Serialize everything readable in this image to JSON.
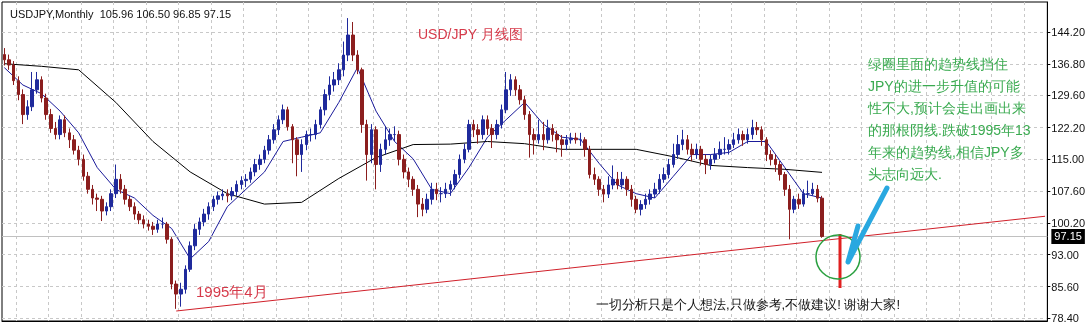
{
  "chart_data": {
    "type": "candlestick",
    "title": "USD/JPY 月线图",
    "subtitle": "USDJPY,Monthly  105.96 106.50 96.85 97.15",
    "annotations": [
      "1995年4月",
      "绿圈里面的趋势线挡住JPY的进一步升值的可能性不大,预计会走出画出来的那根阴线.跌破1995年13年来的趋势线,相信JPY多头志向远大.",
      "一切分析只是个人想法,只做参考,不做建议! 谢谢大家!"
    ],
    "categories": [
      null,
      null,
      null,
      null,
      null,
      null,
      null,
      null,
      null,
      null,
      null,
      null,
      null,
      null,
      null,
      null,
      null,
      null,
      null,
      null,
      null,
      null,
      null,
      null,
      null,
      null,
      null,
      null,
      null,
      null,
      null,
      null,
      null,
      null,
      null,
      null,
      null,
      null,
      null,
      null,
      null,
      null,
      null,
      null,
      null,
      null,
      null,
      null,
      null,
      null,
      null,
      null,
      null,
      null,
      null,
      null,
      null,
      null,
      null,
      null,
      null,
      null,
      null,
      null,
      null,
      null,
      null,
      null,
      null,
      null,
      null,
      null,
      null,
      null,
      null,
      null,
      null,
      null,
      null,
      null,
      null,
      null,
      null,
      null,
      null,
      null,
      null,
      null,
      null,
      null,
      null,
      null,
      null,
      null,
      null,
      null,
      null,
      null,
      null,
      null,
      null,
      null,
      null,
      null,
      null,
      null,
      null,
      null,
      null,
      null,
      null,
      null,
      null,
      null,
      null,
      null,
      null,
      null,
      null,
      null,
      null,
      null,
      null,
      null,
      null,
      null,
      null,
      null,
      null,
      null,
      null,
      null,
      null,
      null,
      null,
      null,
      null,
      null,
      null,
      null,
      null,
      null,
      null,
      null,
      null,
      null,
      null,
      null,
      null,
      null,
      null,
      null,
      null,
      null,
      null,
      null,
      null,
      null,
      null,
      null,
      null,
      null,
      null,
      null,
      null,
      null,
      null,
      null,
      null,
      null,
      null,
      null,
      null,
      null,
      null,
      null,
      null,
      null,
      null,
      null,
      null,
      null,
      null,
      null,
      null,
      null,
      null,
      null,
      null,
      null,
      null,
      null,
      null,
      null,
      null,
      null,
      null,
      null,
      null,
      null,
      null,
      null,
      null,
      null,
      null,
      null,
      null,
      null,
      null,
      null,
      null,
      null,
      null,
      null,
      null,
      null,
      null,
      null,
      null,
      null,
      null,
      null,
      null,
      null,
      null
    ],
    "ylim": [
      77.7,
      151.1
    ],
    "yticks": [
      {
        "value": 78.4,
        "label": "78.40"
      },
      {
        "value": 85.6,
        "label": "85.60"
      },
      {
        "value": 93,
        "label": "93.00"
      },
      {
        "value": 100.2,
        "label": "100.20"
      },
      {
        "value": 107.6,
        "label": "107.60"
      },
      {
        "value": 115,
        "label": "115.00"
      },
      {
        "value": 122.2,
        "label": "122.20"
      },
      {
        "value": 129.6,
        "label": "129.60"
      },
      {
        "value": 136.8,
        "label": "136.80"
      },
      {
        "value": 144.2,
        "label": "144.20"
      }
    ],
    "tick_labels": "y",
    "grid": true,
    "marker": "none",
    "ref_lines": [
      {
        "axis": "y",
        "value": 97.15,
        "label": "97.15",
        "color": "#c0c0c0"
      }
    ],
    "series": [
      {
        "type": "candlestick",
        "ohlc": [
          [
            139,
            140.5,
            136.5,
            137.8
          ],
          [
            137.8,
            139,
            135.5,
            136.6
          ],
          [
            136.6,
            137.5,
            132,
            133
          ],
          [
            133,
            134,
            128.5,
            129.8
          ],
          [
            129.8,
            131,
            123,
            125.2
          ],
          [
            125.2,
            128.5,
            124,
            127
          ],
          [
            127,
            135,
            126,
            130.9
          ],
          [
            130.9,
            135,
            130,
            133.2
          ],
          [
            133.2,
            134,
            128,
            129
          ],
          [
            129,
            130,
            124,
            125.2
          ],
          [
            125.2,
            126.5,
            121,
            122
          ],
          [
            122,
            123.5,
            119.5,
            120.6
          ],
          [
            120.6,
            125,
            119.5,
            124
          ],
          [
            124,
            125,
            120,
            121
          ],
          [
            121,
            122,
            117.5,
            119.4
          ],
          [
            119.4,
            120.5,
            116,
            117
          ],
          [
            117,
            118,
            113.5,
            114.9
          ],
          [
            114.9,
            116,
            110,
            111
          ],
          [
            111,
            112,
            107,
            108
          ],
          [
            108,
            109,
            104.5,
            106
          ],
          [
            106,
            107,
            103,
            105.7
          ],
          [
            105.7,
            106.5,
            100.7,
            103
          ],
          [
            103,
            105,
            102,
            104
          ],
          [
            104,
            108,
            103,
            107
          ],
          [
            107,
            113.7,
            106,
            110.3
          ],
          [
            110.3,
            111.5,
            107,
            108
          ],
          [
            108,
            109,
            104.5,
            105.7
          ],
          [
            105.7,
            106.5,
            103,
            104
          ],
          [
            104,
            105,
            101,
            102.3
          ],
          [
            102.3,
            103,
            100,
            101
          ],
          [
            101,
            102,
            99,
            100
          ],
          [
            100,
            101,
            98.5,
            99.5
          ],
          [
            99.5,
            100.5,
            97.5,
            98.8
          ],
          [
            98.8,
            101,
            98,
            100
          ],
          [
            100,
            101.5,
            99,
            100
          ],
          [
            100,
            100.5,
            95.5,
            96.5
          ],
          [
            96.5,
            97,
            85,
            86.2
          ],
          [
            86.2,
            87,
            80.5,
            83.9
          ],
          [
            83.9,
            86.5,
            81,
            85
          ],
          [
            85,
            90.5,
            84,
            89.6
          ],
          [
            89.6,
            96,
            89,
            95
          ],
          [
            95,
            100,
            94,
            98.8
          ],
          [
            98.8,
            101.5,
            97.5,
            100.5
          ],
          [
            100.5,
            103.5,
            99.5,
            102.3
          ],
          [
            102.3,
            105,
            101,
            104
          ],
          [
            104,
            106.5,
            103,
            105.7
          ],
          [
            105.7,
            107.5,
            104.5,
            106.5
          ],
          [
            106.5,
            108,
            105.5,
            106.9
          ],
          [
            106.9,
            108,
            105,
            106.5
          ],
          [
            106.5,
            108.5,
            105.5,
            107.5
          ],
          [
            107.5,
            110,
            106.5,
            109.1
          ],
          [
            109.1,
            111,
            108,
            110
          ],
          [
            110,
            111.5,
            108.5,
            110.3
          ],
          [
            110.3,
            113,
            109.5,
            112
          ],
          [
            112,
            115,
            111,
            113.7
          ],
          [
            113.7,
            116,
            112.5,
            114.9
          ],
          [
            114.9,
            118,
            114,
            117
          ],
          [
            117,
            120.5,
            116,
            119.4
          ],
          [
            119.4,
            123,
            118.5,
            121.7
          ],
          [
            121.7,
            125,
            120.5,
            124
          ],
          [
            124,
            127.5,
            123,
            126.3
          ],
          [
            126.3,
            127,
            121.5,
            122.4
          ],
          [
            122.4,
            123,
            114,
            119.4
          ],
          [
            119.4,
            120,
            111,
            116
          ],
          [
            116,
            119.5,
            112,
            118.3
          ],
          [
            118.3,
            121.5,
            117,
            120.6
          ],
          [
            120.6,
            122,
            119,
            120.6
          ],
          [
            120.6,
            124,
            119.5,
            122.9
          ],
          [
            122.9,
            127,
            122,
            126.3
          ],
          [
            126.3,
            131,
            125,
            129.8
          ],
          [
            129.8,
            134,
            128.5,
            132
          ],
          [
            132,
            135,
            130.5,
            133.2
          ],
          [
            133.2,
            137,
            132,
            135.5
          ],
          [
            135.5,
            142,
            134,
            138.9
          ],
          [
            138.9,
            147.4,
            137.5,
            143.5
          ],
          [
            143.5,
            146.5,
            137.5,
            138.9
          ],
          [
            138.9,
            140,
            134.5,
            135.5
          ],
          [
            135.5,
            136,
            121,
            122.9
          ],
          [
            122.9,
            124,
            110,
            116
          ],
          [
            116,
            123,
            114,
            121.7
          ],
          [
            121.7,
            122.5,
            108,
            113.7
          ],
          [
            113.7,
            118.5,
            112,
            117.2
          ],
          [
            117.2,
            122.5,
            116,
            119.4
          ],
          [
            119.4,
            122,
            118,
            120.6
          ],
          [
            120.6,
            122.5,
            119,
            120.6
          ],
          [
            120.6,
            121.5,
            113.5,
            114.9
          ],
          [
            114.9,
            116,
            110.5,
            112
          ],
          [
            112,
            113,
            108.5,
            110.3
          ],
          [
            110.3,
            111,
            106.5,
            108
          ],
          [
            108,
            109,
            101.6,
            104.6
          ],
          [
            104.6,
            106,
            101.8,
            103.4
          ],
          [
            103.4,
            107,
            102.5,
            105.7
          ],
          [
            105.7,
            109.5,
            104.5,
            108
          ],
          [
            108,
            109.5,
            105.5,
            107
          ],
          [
            107,
            108.5,
            105,
            107
          ],
          [
            107,
            109.5,
            106,
            108
          ],
          [
            108,
            110,
            106.5,
            109.1
          ],
          [
            109.1,
            112.5,
            108,
            111.4
          ],
          [
            111.4,
            116,
            110.5,
            114.9
          ],
          [
            114.9,
            118.5,
            114,
            117.2
          ],
          [
            117.2,
            124,
            116.5,
            122.9
          ],
          [
            122.9,
            124,
            120,
            121.7
          ],
          [
            121.7,
            123,
            118.5,
            120.6
          ],
          [
            120.6,
            125,
            119.5,
            124
          ],
          [
            124,
            125,
            120.5,
            122
          ],
          [
            122,
            123,
            117.5,
            120.6
          ],
          [
            120.6,
            124,
            119.5,
            122.9
          ],
          [
            122.9,
            127.5,
            122,
            126.3
          ],
          [
            126.3,
            135,
            125.5,
            130.9
          ],
          [
            130.9,
            134.5,
            129.5,
            133.2
          ],
          [
            133.2,
            134,
            129.5,
            130.9
          ],
          [
            130.9,
            132,
            127.5,
            128.6
          ],
          [
            128.6,
            129.5,
            124,
            125.2
          ],
          [
            125.2,
            126,
            115.3,
            120.6
          ],
          [
            120.6,
            122,
            116,
            119.4
          ],
          [
            119.4,
            124,
            118.5,
            120.6
          ],
          [
            120.6,
            123.5,
            117,
            119.4
          ],
          [
            119.4,
            124,
            118.5,
            122
          ],
          [
            122,
            123,
            119,
            120.6
          ],
          [
            120.6,
            121.5,
            116.5,
            119.4
          ],
          [
            119.4,
            120.5,
            115.5,
            118.3
          ],
          [
            118.3,
            120.5,
            117,
            119.4
          ],
          [
            119.4,
            121,
            118.5,
            119.8
          ],
          [
            119.8,
            121,
            118.5,
            119.4
          ],
          [
            119.4,
            121,
            118,
            119.4
          ],
          [
            119.4,
            120,
            115.5,
            117.2
          ],
          [
            117.2,
            118,
            110.5,
            111.4
          ],
          [
            111.4,
            113,
            109,
            110.3
          ],
          [
            110.3,
            111,
            106.5,
            108
          ],
          [
            108,
            109,
            105,
            106.9
          ],
          [
            106.9,
            111,
            106,
            109
          ],
          [
            109,
            113.5,
            108,
            110.3
          ],
          [
            110.3,
            112,
            108,
            109
          ],
          [
            109,
            112,
            108,
            110.3
          ],
          [
            110.3,
            111,
            106.5,
            108
          ],
          [
            108,
            109,
            104,
            105.7
          ],
          [
            105.7,
            106.5,
            102.5,
            103.4
          ],
          [
            103.4,
            105.5,
            102,
            104.5
          ],
          [
            104.5,
            107,
            103.5,
            105.7
          ],
          [
            105.7,
            108,
            104.5,
            106.9
          ],
          [
            106.9,
            109.5,
            106,
            108
          ],
          [
            108,
            111.5,
            107,
            110.3
          ],
          [
            110.3,
            113,
            109.5,
            111.4
          ],
          [
            111.4,
            115,
            110.5,
            113.7
          ],
          [
            113.7,
            118.5,
            113,
            116
          ],
          [
            116,
            120.5,
            115,
            118.3
          ],
          [
            118.3,
            121.7,
            117,
            119.4
          ],
          [
            119.4,
            120.5,
            116,
            117.2
          ],
          [
            117.2,
            118.5,
            114.5,
            116
          ],
          [
            116,
            118.5,
            115,
            117.2
          ],
          [
            117.2,
            118,
            113.5,
            114.9
          ],
          [
            114.9,
            116,
            111.5,
            113.7
          ],
          [
            113.7,
            116,
            112.5,
            114.9
          ],
          [
            114.9,
            117.5,
            114,
            116
          ],
          [
            116,
            119,
            115,
            117.2
          ],
          [
            117.2,
            120,
            116,
            117.2
          ],
          [
            117.2,
            119.5,
            116,
            118.3
          ],
          [
            118.3,
            121,
            117.5,
            119.4
          ],
          [
            119.4,
            122,
            118.5,
            120.6
          ],
          [
            120.6,
            121.5,
            118,
            119.4
          ],
          [
            119.4,
            122,
            118.5,
            120.6
          ],
          [
            120.6,
            124,
            119.5,
            122.2
          ],
          [
            122.2,
            123.5,
            120.5,
            121.7
          ],
          [
            121.7,
            122.5,
            118,
            119.4
          ],
          [
            119.4,
            120,
            114.5,
            116
          ],
          [
            116,
            117,
            113.5,
            114.9
          ],
          [
            114.9,
            116,
            112,
            113.7
          ],
          [
            113.7,
            114.5,
            110,
            111.4
          ],
          [
            111.4,
            112,
            106.5,
            108
          ],
          [
            108,
            109,
            96.5,
            103.4
          ],
          [
            103.4,
            106.5,
            102.5,
            105.7
          ],
          [
            105.7,
            107,
            103.5,
            104.6
          ],
          [
            104.6,
            108,
            104,
            107
          ],
          [
            107,
            110,
            106,
            107
          ],
          [
            107,
            109.5,
            106.5,
            108
          ],
          [
            108,
            109,
            105,
            105.96
          ],
          [
            105.96,
            106.5,
            96.85,
            97.15
          ],
          null,
          null,
          null,
          null,
          null,
          null,
          null,
          null,
          null,
          null,
          null,
          null,
          null,
          null,
          null,
          null,
          null,
          null,
          null,
          null,
          null,
          null,
          null,
          null,
          null,
          null,
          null,
          null,
          null,
          null,
          null,
          null,
          null,
          null,
          null,
          null,
          null,
          null,
          null,
          null,
          null,
          null,
          null,
          null,
          null,
          null,
          null,
          null
        ]
      },
      {
        "type": "line",
        "color": "#1a1a9a",
        "values": [
          136,
          null,
          null,
          null,
          132,
          null,
          null,
          null,
          130,
          null,
          null,
          null,
          126,
          null,
          null,
          null,
          121,
          null,
          null,
          null,
          113,
          null,
          null,
          null,
          108,
          null,
          null,
          null,
          106,
          null,
          null,
          null,
          102,
          null,
          null,
          null,
          99,
          null,
          null,
          null,
          92,
          null,
          null,
          null,
          96,
          null,
          null,
          null,
          104,
          null,
          null,
          null,
          108,
          null,
          null,
          null,
          112,
          null,
          null,
          null,
          119,
          null,
          null,
          null,
          120,
          null,
          null,
          null,
          121,
          null,
          null,
          null,
          128,
          null,
          null,
          null,
          136,
          null,
          null,
          null,
          126,
          null,
          null,
          null,
          119,
          null,
          null,
          null,
          115,
          null,
          null,
          null,
          108,
          null,
          null,
          null,
          107,
          null,
          null,
          null,
          113,
          null,
          null,
          null,
          120,
          null,
          null,
          null,
          124,
          null,
          null,
          null,
          128,
          null,
          null,
          null,
          123,
          null,
          null,
          null,
          120,
          null,
          null,
          null,
          119.5,
          null,
          null,
          null,
          114,
          null,
          null,
          null,
          109,
          null,
          null,
          null,
          107,
          null,
          null,
          null,
          106,
          null,
          null,
          null,
          111,
          null,
          null,
          null,
          116,
          null,
          null,
          null,
          116,
          null,
          null,
          null,
          116.5,
          null,
          null,
          null,
          119,
          null,
          null,
          null,
          119,
          null,
          null,
          null,
          113,
          null,
          null,
          null,
          107,
          null,
          null,
          null,
          106,
          null,
          null,
          null,
          null,
          null,
          null,
          null,
          null,
          null,
          null,
          null,
          null,
          null,
          null,
          null,
          null,
          null,
          null,
          null,
          null,
          null,
          null,
          null,
          null,
          null,
          null,
          null,
          null,
          null,
          null,
          null,
          null,
          null,
          null,
          null,
          null,
          null,
          null,
          null,
          null,
          null,
          null,
          null,
          null,
          null,
          null,
          null,
          null
        ]
      },
      {
        "type": "line",
        "color": "#000000",
        "values": [
          136.9,
          null,
          null,
          null,
          null,
          null,
          null,
          null,
          136.3,
          null,
          null,
          null,
          null,
          null,
          null,
          null,
          135.5,
          null,
          null,
          null,
          null,
          null,
          null,
          null,
          128,
          null,
          null,
          null,
          null,
          null,
          null,
          null,
          119,
          null,
          null,
          null,
          null,
          null,
          null,
          null,
          112,
          null,
          null,
          null,
          null,
          null,
          null,
          null,
          107,
          null,
          null,
          null,
          null,
          null,
          null,
          null,
          104.6,
          null,
          null,
          null,
          null,
          null,
          null,
          null,
          105,
          null,
          null,
          null,
          null,
          null,
          null,
          null,
          110.5,
          null,
          null,
          null,
          null,
          null,
          null,
          null,
          115.3,
          null,
          null,
          null,
          null,
          null,
          null,
          null,
          118.3,
          null,
          null,
          null,
          null,
          null,
          null,
          null,
          118.4,
          null,
          null,
          null,
          null,
          null,
          null,
          null,
          119,
          null,
          null,
          null,
          null,
          null,
          null,
          null,
          118.5,
          null,
          null,
          null,
          null,
          null,
          null,
          null,
          117.2,
          null,
          null,
          null,
          null,
          null,
          null,
          null,
          117.2,
          null,
          null,
          null,
          null,
          null,
          null,
          null,
          117.2,
          null,
          null,
          null,
          null,
          null,
          null,
          null,
          115.5,
          null,
          null,
          null,
          null,
          null,
          null,
          null,
          113.5,
          null,
          null,
          null,
          null,
          null,
          null,
          null,
          113,
          null,
          null,
          null,
          null,
          null,
          null,
          null,
          112.6,
          null,
          null,
          null,
          null,
          null,
          null,
          null,
          111.9,
          null,
          null,
          null,
          null,
          null,
          null,
          null,
          null,
          null,
          null,
          null,
          null,
          null,
          null,
          null,
          null,
          null,
          null,
          null,
          null,
          null,
          null,
          null,
          null,
          null,
          null,
          null,
          null,
          null,
          null,
          null,
          null,
          null,
          null,
          null,
          null,
          null,
          null,
          null,
          null,
          null,
          null,
          null,
          null,
          null,
          null,
          null,
          null
        ]
      },
      {
        "type": "line",
        "color": "#d0202a",
        "values": [
          null,
          null,
          null,
          null,
          null,
          null,
          null,
          null,
          null,
          null,
          null,
          null,
          null,
          null,
          null,
          null,
          null,
          null,
          null,
          null,
          null,
          null,
          null,
          null,
          null,
          null,
          null,
          null,
          null,
          null,
          null,
          null,
          null,
          null,
          null,
          null,
          null,
          80,
          null,
          null,
          null,
          null,
          null,
          null,
          null,
          null,
          null,
          null,
          null,
          null,
          null,
          null,
          null,
          null,
          null,
          null,
          null,
          null,
          null,
          null,
          null,
          null,
          null,
          null,
          null,
          null,
          null,
          null,
          null,
          null,
          null,
          null,
          null,
          null,
          null,
          null,
          null,
          null,
          null,
          null,
          null,
          null,
          null,
          null,
          null,
          null,
          null,
          null,
          null,
          null,
          null,
          null,
          null,
          null,
          null,
          null,
          null,
          null,
          null,
          null,
          null,
          null,
          null,
          null,
          null,
          null,
          null,
          null,
          null,
          null,
          null,
          null,
          null,
          null,
          null,
          null,
          null,
          null,
          null,
          null,
          null,
          null,
          null,
          null,
          null,
          null,
          null,
          null,
          null,
          null,
          null,
          null,
          null,
          null,
          null,
          null,
          null,
          null,
          null,
          null,
          null,
          null,
          null,
          null,
          null,
          null,
          null,
          null,
          null,
          null,
          null,
          null,
          null,
          null,
          null,
          null,
          null,
          null,
          null,
          null,
          null,
          null,
          null,
          null,
          null,
          null,
          null,
          null,
          null,
          null,
          null,
          null,
          null,
          null,
          null,
          null,
          null,
          null,
          null,
          null,
          null,
          null,
          null,
          null,
          null,
          null,
          null,
          null,
          null,
          null,
          null,
          null,
          null,
          null,
          null,
          null,
          null,
          null,
          null,
          null,
          null,
          null,
          null,
          null,
          null,
          null,
          null,
          null,
          null,
          null,
          null,
          null,
          null,
          null,
          null,
          null,
          null,
          null,
          null,
          null,
          null,
          null,
          null,
          null,
          101.8
        ]
      }
    ]
  }
}
